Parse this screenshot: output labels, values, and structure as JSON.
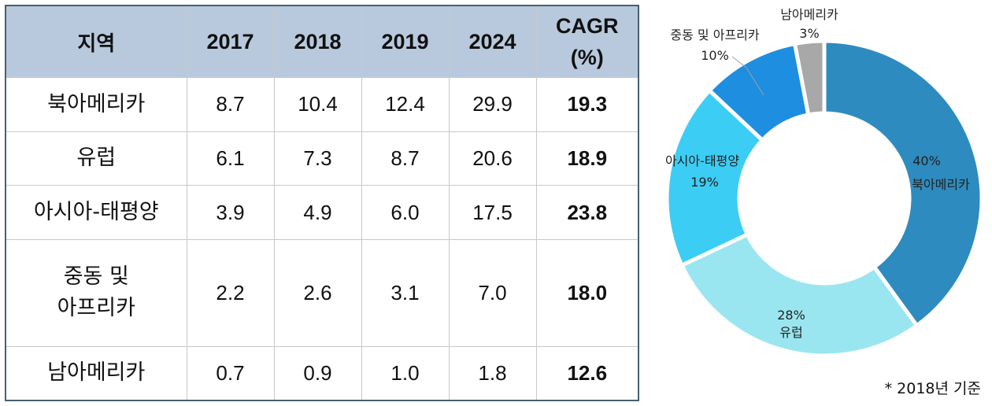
{
  "table": {
    "headers": [
      "지역",
      "2017",
      "2018",
      "2019",
      "2024",
      "CAGR",
      "(%)"
    ],
    "rows": [
      {
        "region": "북아메리카",
        "region_line2": "",
        "v2017": "8.7",
        "v2018": "10.4",
        "v2019": "12.4",
        "v2024": "29.9",
        "cagr": "19.3"
      },
      {
        "region": "유럽",
        "region_line2": "",
        "v2017": "6.1",
        "v2018": "7.3",
        "v2019": "8.7",
        "v2024": "20.6",
        "cagr": "18.9"
      },
      {
        "region": "아시아-태평양",
        "region_line2": "",
        "v2017": "3.9",
        "v2018": "4.9",
        "v2019": "6.0",
        "v2024": "17.5",
        "cagr": "23.8"
      },
      {
        "region": "중동 및",
        "region_line2": "아프리카",
        "v2017": "2.2",
        "v2018": "2.6",
        "v2019": "3.1",
        "v2024": "7.0",
        "cagr": "18.0"
      },
      {
        "region": "남아메리카",
        "region_line2": "",
        "v2017": "0.7",
        "v2018": "0.9",
        "v2019": "1.0",
        "v2024": "1.8",
        "cagr": "12.6"
      }
    ]
  },
  "chart_data": {
    "type": "pie",
    "donut": true,
    "slices": [
      {
        "label": "북아메리카",
        "value": 40,
        "value_label": "40%",
        "color": "#2e8bbf"
      },
      {
        "label": "유럽",
        "value": 28,
        "value_label": "28%",
        "color": "#9ae6f0"
      },
      {
        "label": "아시아-태평양",
        "value": 19,
        "value_label": "19%",
        "color": "#3ccdf5"
      },
      {
        "label": "중동 및 아프리카",
        "value": 10,
        "value_label": "10%",
        "color": "#1e8ee0"
      },
      {
        "label": "남아메리카",
        "value": 3,
        "value_label": "3%",
        "color": "#a8a8a8"
      }
    ]
  },
  "footnote": "* 2018년 기준"
}
